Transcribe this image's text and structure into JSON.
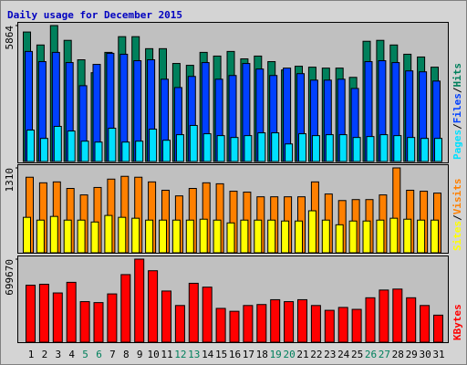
{
  "chart_data": [
    {
      "type": "bar",
      "title": "Daily usage for December 2015",
      "legend_separator": "/",
      "ylim": [
        0,
        5864
      ],
      "yticks": [
        5864
      ],
      "series": [
        {
          "name": "Hits",
          "color": "#00805c",
          "values": [
            5585,
            5026,
            5864,
            5226,
            4388,
            3830,
            4707,
            5385,
            5385,
            4867,
            4867,
            4229,
            4149,
            4707,
            4548,
            4747,
            4428,
            4548,
            4308,
            3949,
            4109,
            4069,
            4029,
            4029,
            3630,
            5186,
            5226,
            5026,
            4627,
            4508,
            4069
          ]
        },
        {
          "name": "Files",
          "color": "#0040ff",
          "values": [
            4747,
            4308,
            4707,
            4268,
            3271,
            4189,
            4667,
            4627,
            4348,
            4388,
            3550,
            3191,
            3670,
            4268,
            3550,
            3710,
            4228,
            3989,
            3710,
            4029,
            3790,
            3510,
            3510,
            3550,
            3151,
            4308,
            4348,
            4268,
            3909,
            3869,
            3470
          ]
        },
        {
          "name": "Pages",
          "color": "#00e0ff",
          "values": [
            1356,
            997,
            1516,
            1316,
            878,
            838,
            1436,
            838,
            878,
            1396,
            917,
            1157,
            1556,
            1197,
            1117,
            1037,
            1117,
            1237,
            1237,
            758,
            1197,
            1117,
            1157,
            1157,
            1037,
            1077,
            1157,
            1117,
            1037,
            997,
            997
          ]
        }
      ]
    },
    {
      "type": "bar",
      "ylim": [
        0,
        1310
      ],
      "yticks": [
        1310
      ],
      "series": [
        {
          "name": "Visits",
          "color": "#ff8000",
          "values": [
            1166,
            1080,
            1094,
            993,
            893,
            1008,
            1137,
            1180,
            1166,
            1094,
            965,
            878,
            993,
            1080,
            1065,
            950,
            936,
            864,
            864,
            864,
            864,
            1094,
            907,
            806,
            821,
            821,
            893,
            1310,
            965,
            950,
            921
          ]
        },
        {
          "name": "Sites",
          "color": "#ffff00",
          "values": [
            547,
            504,
            561,
            504,
            504,
            475,
            576,
            547,
            533,
            504,
            504,
            504,
            504,
            518,
            504,
            461,
            504,
            504,
            504,
            490,
            490,
            648,
            504,
            432,
            490,
            490,
            504,
            533,
            518,
            504,
            504
          ]
        }
      ]
    },
    {
      "type": "bar",
      "ylim": [
        0,
        699670
      ],
      "yticks": [
        699670
      ],
      "categories": [
        "1",
        "2",
        "3",
        "4",
        "5",
        "6",
        "7",
        "8",
        "9",
        "10",
        "11",
        "12",
        "13",
        "14",
        "15",
        "16",
        "17",
        "18",
        "19",
        "20",
        "21",
        "22",
        "23",
        "24",
        "25",
        "26",
        "27",
        "28",
        "29",
        "30",
        "31"
      ],
      "category_colors": [
        "#000000",
        "#000000",
        "#000000",
        "#000000",
        "#00805c",
        "#00805c",
        "#000000",
        "#000000",
        "#000000",
        "#000000",
        "#000000",
        "#00805c",
        "#00805c",
        "#000000",
        "#000000",
        "#000000",
        "#000000",
        "#000000",
        "#00805c",
        "#00805c",
        "#000000",
        "#000000",
        "#000000",
        "#000000",
        "#000000",
        "#00805c",
        "#00805c",
        "#000000",
        "#000000",
        "#000000",
        "#000000"
      ],
      "series": [
        {
          "name": "KBytes",
          "color": "#ff0000",
          "values": [
            480024,
            488160,
            414936,
            504432,
            341712,
            333576,
            406800,
            569520,
            699670,
            602064,
            431208,
            309168,
            496296,
            463752,
            284760,
            260352,
            309168,
            317304,
            357984,
            341712,
            357984,
            309168,
            268488,
            292896,
            276624,
            374256,
            439344,
            447480,
            374256,
            309168,
            227808
          ]
        }
      ]
    }
  ]
}
